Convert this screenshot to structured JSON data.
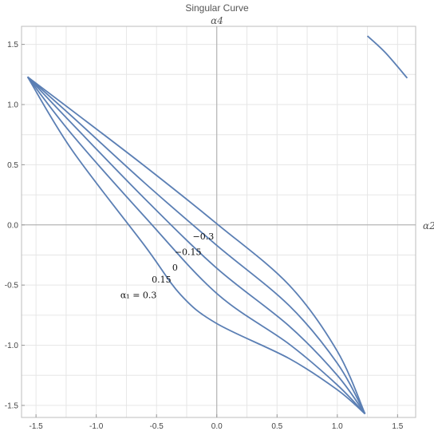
{
  "chart_data": {
    "type": "line",
    "title": "Singular Curve",
    "xlabel": "α2",
    "ylabel": "α4",
    "xlim": [
      -1.62,
      1.65
    ],
    "ylim": [
      -1.6,
      1.65
    ],
    "xticks": [
      "-1.5",
      "-1.0",
      "-0.5",
      "0.0",
      "0.5",
      "1.0",
      "1.5"
    ],
    "yticks": [
      "-1.5",
      "-1.0",
      "-0.5",
      "0.0",
      "0.5",
      "1.0",
      "1.5"
    ],
    "xtick_values": [
      -1.5,
      -1.0,
      -0.5,
      0.0,
      0.5,
      1.0,
      1.5
    ],
    "ytick_values": [
      -1.5,
      -1.0,
      -0.5,
      0.0,
      0.5,
      1.0,
      1.5
    ],
    "grid": true,
    "color": "#5b7fb4",
    "series": [
      {
        "name": "-0.3",
        "x": [
          -1.57,
          -1.2,
          -0.6,
          0.0,
          0.6,
          1.0,
          1.23
        ],
        "y": [
          1.23,
          0.95,
          0.49,
          0.01,
          -0.5,
          -1.05,
          -1.57
        ]
      },
      {
        "name": "-0.15",
        "x": [
          -1.57,
          -1.2,
          -0.6,
          0.0,
          0.6,
          1.0,
          1.23
        ],
        "y": [
          1.23,
          0.9,
          0.35,
          -0.17,
          -0.67,
          -1.15,
          -1.57
        ]
      },
      {
        "name": "0",
        "x": [
          -1.57,
          -1.2,
          -0.6,
          0.0,
          0.6,
          1.0,
          1.23
        ],
        "y": [
          1.23,
          0.84,
          0.22,
          -0.36,
          -0.84,
          -1.25,
          -1.57
        ]
      },
      {
        "name": "0.15",
        "x": [
          -1.57,
          -1.2,
          -0.6,
          0.0,
          0.6,
          1.0,
          1.23
        ],
        "y": [
          1.23,
          0.75,
          0.07,
          -0.57,
          -0.99,
          -1.33,
          -1.57
        ]
      },
      {
        "name": "0.3",
        "x": [
          -1.57,
          -1.2,
          -0.6,
          -0.3,
          0.0,
          0.6,
          1.0,
          1.23
        ],
        "y": [
          1.23,
          0.62,
          -0.17,
          -0.58,
          -0.82,
          -1.11,
          -1.37,
          -1.57
        ]
      },
      {
        "name": "",
        "x": [
          1.25,
          1.4,
          1.58
        ],
        "y": [
          1.57,
          1.43,
          1.22
        ]
      }
    ],
    "annotations": [
      {
        "text": "−0.3",
        "x": -0.2,
        "y": -0.12
      },
      {
        "text": "−0.15",
        "x": -0.35,
        "y": -0.25
      },
      {
        "text": "0",
        "x": -0.37,
        "y": -0.38
      },
      {
        "text": "0.15",
        "x": -0.54,
        "y": -0.48
      },
      {
        "text": "α₁ = 0.3",
        "x": -0.8,
        "y": -0.61
      }
    ]
  }
}
